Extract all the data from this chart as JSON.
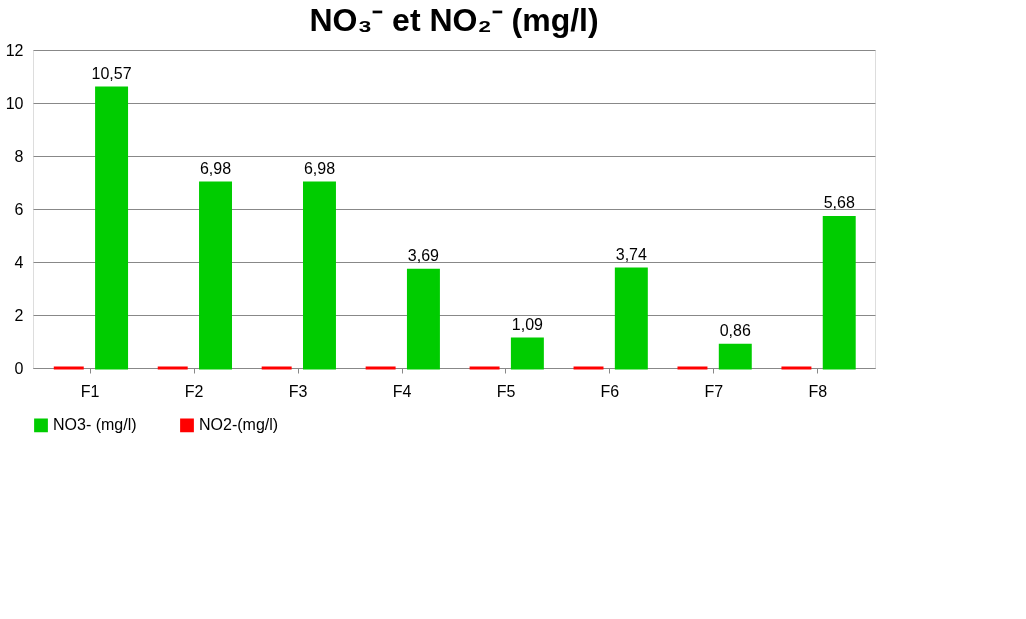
{
  "chart_data": {
    "type": "bar",
    "title": "NO₃⁻ et NO₂⁻ (mg/l)",
    "categories": [
      "F1",
      "F2",
      "F3",
      "F4",
      "F5",
      "F6",
      "F7",
      "F8"
    ],
    "series": [
      {
        "name": "NO3- (mg/l)",
        "color": "#00cc00",
        "values": [
          10.57,
          6.98,
          6.98,
          3.69,
          1.09,
          3.74,
          0.86,
          5.68
        ],
        "value_labels": [
          "10,57",
          "6,98",
          "6,98",
          "3,69",
          "1,09",
          "3,74",
          "0,86",
          "5,68"
        ]
      },
      {
        "name": "NO2-(mg/l)",
        "color": "#ff0000",
        "values": [
          0,
          0,
          0,
          0,
          0,
          0,
          0,
          0
        ]
      }
    ],
    "ylim": [
      0,
      12
    ],
    "yticks": [
      0,
      2,
      4,
      6,
      8,
      10,
      12
    ],
    "grid": "y",
    "legend": "bottom"
  }
}
